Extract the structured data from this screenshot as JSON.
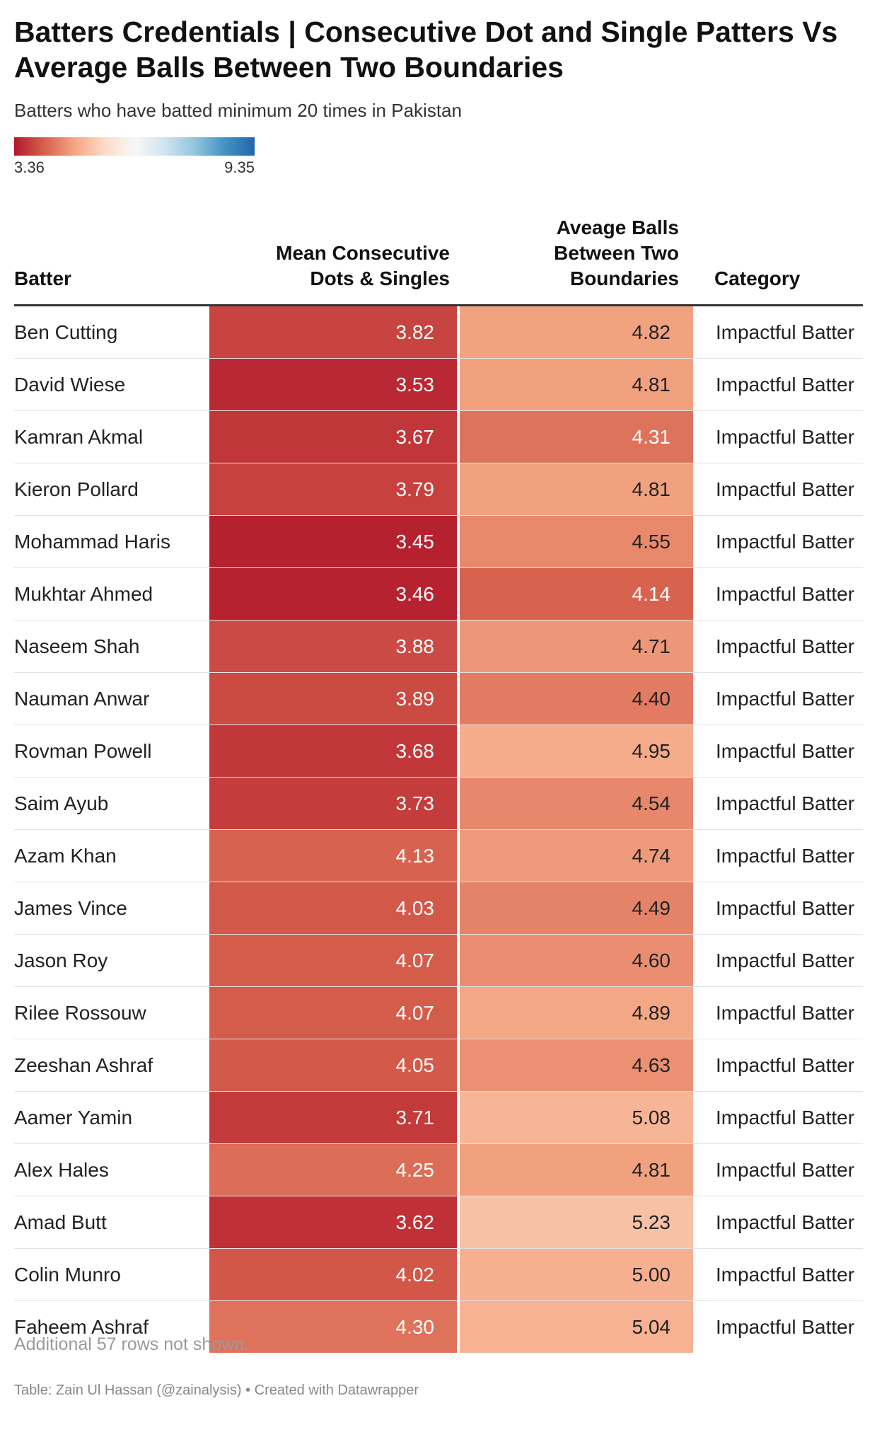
{
  "header": {
    "title": "Batters Credentials | Consecutive Dot and Single Patters Vs Average Balls Between Two Boundaries",
    "subtitle": "Batters who have batted minimum 20 times in Pakistan"
  },
  "legend": {
    "min_label": "3.36",
    "max_label": "9.35",
    "min_value": 3.36,
    "max_value": 9.35,
    "colors": [
      "#b2182b",
      "#d6604d",
      "#f4a582",
      "#fddbc7",
      "#f7f7f7",
      "#d1e5f0",
      "#92c5de",
      "#4393c3",
      "#2166ac"
    ]
  },
  "columns": {
    "batter": "Batter",
    "mean": "Mean Consecutive Dots & Singles",
    "avg": "Aveage Balls Between Two Boundaries",
    "category": "Category"
  },
  "chart_data": {
    "type": "table",
    "color_scale": {
      "min": 3.36,
      "max": 9.35,
      "palette": "red-white-blue diverging"
    },
    "rows": [
      {
        "batter": "Ben Cutting",
        "mean": "3.82",
        "avg": "4.82",
        "category": "Impactful Batter"
      },
      {
        "batter": "David Wiese",
        "mean": "3.53",
        "avg": "4.81",
        "category": "Impactful Batter"
      },
      {
        "batter": "Kamran Akmal",
        "mean": "3.67",
        "avg": "4.31",
        "category": "Impactful Batter"
      },
      {
        "batter": "Kieron Pollard",
        "mean": "3.79",
        "avg": "4.81",
        "category": "Impactful Batter"
      },
      {
        "batter": "Mohammad Haris",
        "mean": "3.45",
        "avg": "4.55",
        "category": "Impactful Batter"
      },
      {
        "batter": "Mukhtar Ahmed",
        "mean": "3.46",
        "avg": "4.14",
        "category": "Impactful Batter"
      },
      {
        "batter": "Naseem Shah",
        "mean": "3.88",
        "avg": "4.71",
        "category": "Impactful Batter"
      },
      {
        "batter": "Nauman Anwar",
        "mean": "3.89",
        "avg": "4.40",
        "category": "Impactful Batter"
      },
      {
        "batter": "Rovman Powell",
        "mean": "3.68",
        "avg": "4.95",
        "category": "Impactful Batter"
      },
      {
        "batter": "Saim Ayub",
        "mean": "3.73",
        "avg": "4.54",
        "category": "Impactful Batter"
      },
      {
        "batter": "Azam Khan",
        "mean": "4.13",
        "avg": "4.74",
        "category": "Impactful Batter"
      },
      {
        "batter": "James Vince",
        "mean": "4.03",
        "avg": "4.49",
        "category": "Impactful Batter"
      },
      {
        "batter": "Jason Roy",
        "mean": "4.07",
        "avg": "4.60",
        "category": "Impactful Batter"
      },
      {
        "batter": "Rilee Rossouw",
        "mean": "4.07",
        "avg": "4.89",
        "category": "Impactful Batter"
      },
      {
        "batter": "Zeeshan Ashraf",
        "mean": "4.05",
        "avg": "4.63",
        "category": "Impactful Batter"
      },
      {
        "batter": "Aamer Yamin",
        "mean": "3.71",
        "avg": "5.08",
        "category": "Impactful Batter"
      },
      {
        "batter": "Alex Hales",
        "mean": "4.25",
        "avg": "4.81",
        "category": "Impactful Batter"
      },
      {
        "batter": "Amad Butt",
        "mean": "3.62",
        "avg": "5.23",
        "category": "Impactful Batter"
      },
      {
        "batter": "Colin Munro",
        "mean": "4.02",
        "avg": "5.00",
        "category": "Impactful Batter"
      },
      {
        "batter": "Faheem Ashraf",
        "mean": "4.30",
        "avg": "5.04",
        "category": "Impactful Batter"
      }
    ]
  },
  "notes": {
    "more_rows": "Additional 57 rows not shown.",
    "source": "Table: Zain Ul Hassan (@zainalysis) • Created with Datawrapper"
  }
}
